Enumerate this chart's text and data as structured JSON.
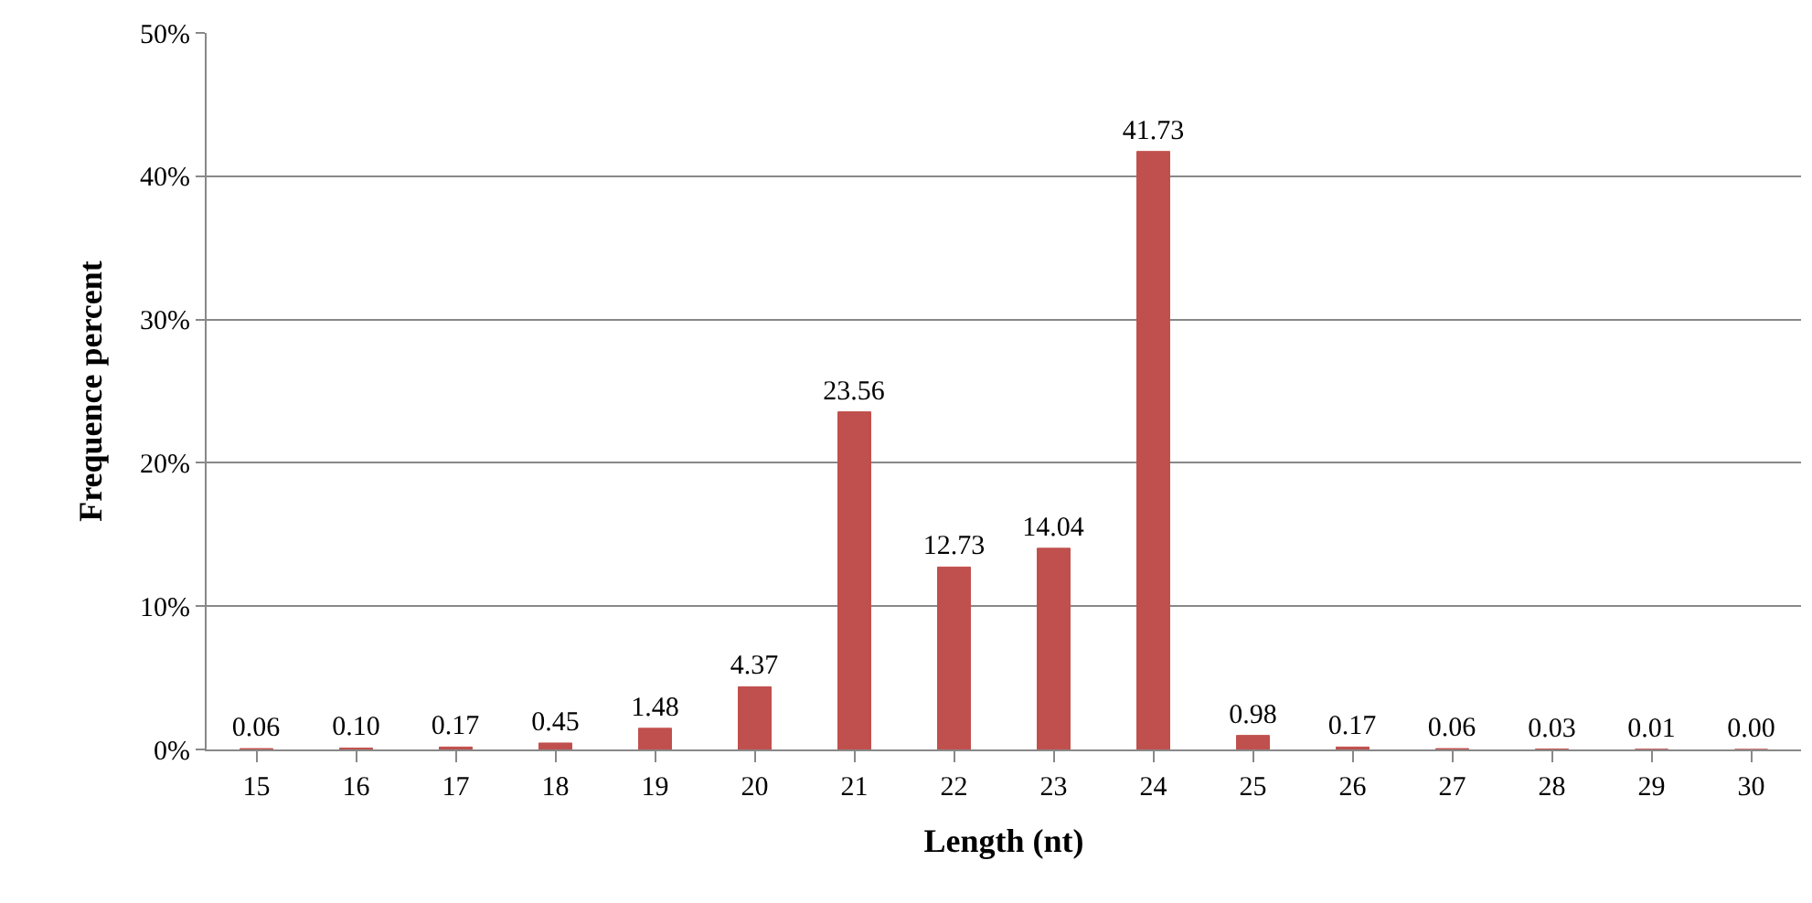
{
  "chart_data": {
    "type": "bar",
    "xlabel": "Length (nt)",
    "ylabel": "Frequence percent",
    "categories": [
      "15",
      "16",
      "17",
      "18",
      "19",
      "20",
      "21",
      "22",
      "23",
      "24",
      "25",
      "26",
      "27",
      "28",
      "29",
      "30"
    ],
    "values": [
      0.06,
      0.1,
      0.17,
      0.45,
      1.48,
      4.37,
      23.56,
      12.73,
      14.04,
      41.73,
      0.98,
      0.17,
      0.06,
      0.03,
      0.01,
      0.0
    ],
    "value_labels": [
      "0.06",
      "0.10",
      "0.17",
      "0.45",
      "1.48",
      "4.37",
      "23.56",
      "12.73",
      "14.04",
      "41.73",
      "0.98",
      "0.17",
      "0.06",
      "0.03",
      "0.01",
      "0.00"
    ],
    "color": "#c0504d",
    "ylim": [
      0,
      50
    ],
    "yticks": [
      {
        "value": 0,
        "label": "0%"
      },
      {
        "value": 10,
        "label": "10%"
      },
      {
        "value": 20,
        "label": "20%"
      },
      {
        "value": 30,
        "label": "30%"
      },
      {
        "value": 40,
        "label": "40%"
      },
      {
        "value": 50,
        "label": "50%"
      }
    ],
    "grid": "y",
    "legend": false
  }
}
